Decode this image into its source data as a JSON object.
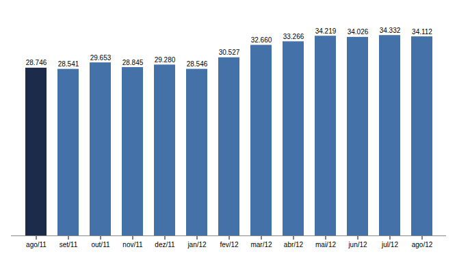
{
  "chart_data": {
    "type": "bar",
    "categories": [
      "ago/11",
      "set/11",
      "out/11",
      "nov/11",
      "dez/11",
      "jan/12",
      "fev/12",
      "mar/12",
      "abr/12",
      "mai/12",
      "jun/12",
      "jul/12",
      "ago/12"
    ],
    "values": [
      28746,
      28541,
      29653,
      28845,
      29280,
      28546,
      30527,
      32660,
      33266,
      34219,
      34026,
      34332,
      34112
    ],
    "value_labels": [
      "28.746",
      "28.541",
      "29.653",
      "28.845",
      "29.280",
      "28.546",
      "30.527",
      "32.660",
      "33.266",
      "34.219",
      "34.026",
      "34.332",
      "34.112"
    ],
    "colors": [
      "#1c2b4a",
      "#4472a8",
      "#4472a8",
      "#4472a8",
      "#4472a8",
      "#4472a8",
      "#4472a8",
      "#4472a8",
      "#4472a8",
      "#4472a8",
      "#4472a8",
      "#4472a8",
      "#4472a8"
    ],
    "ylim": [
      0,
      38000
    ],
    "data_labels": true,
    "tick_labels": "x"
  }
}
